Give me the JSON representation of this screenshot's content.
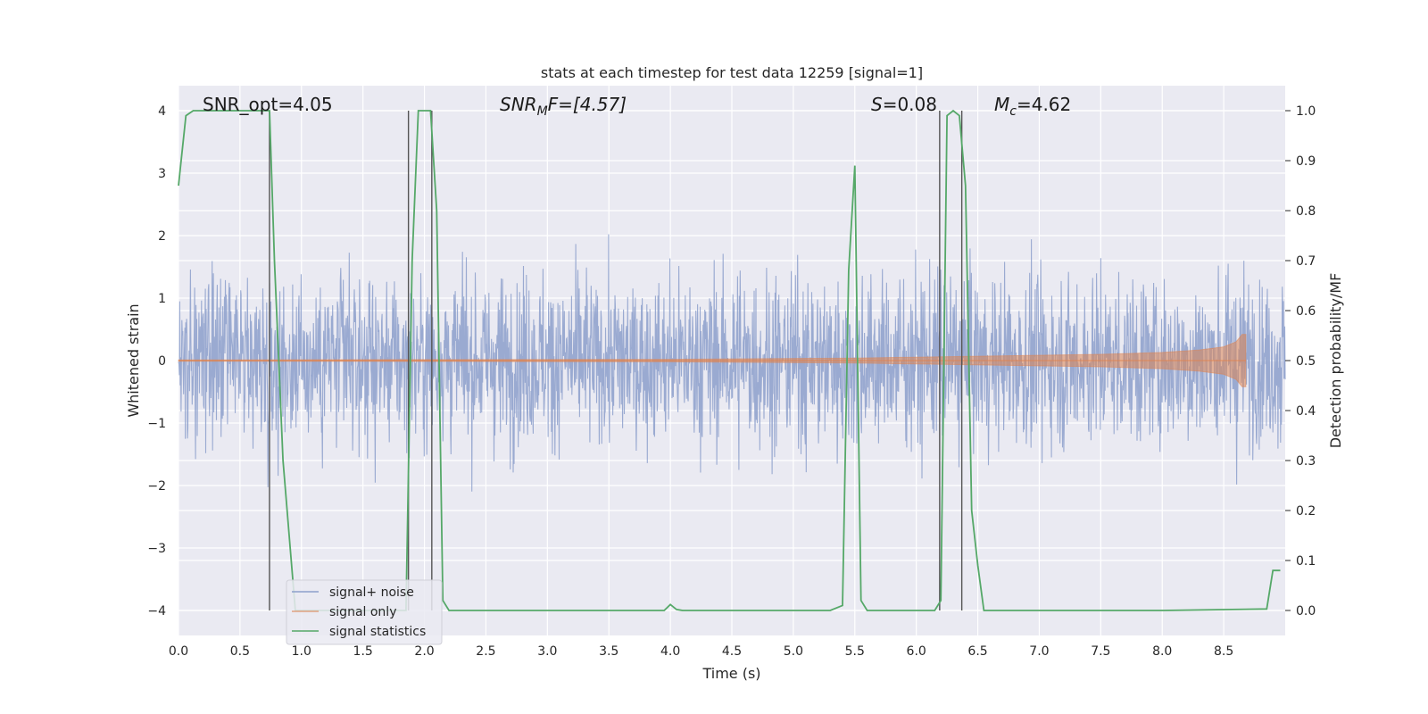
{
  "chart_data": {
    "type": "line",
    "title": "stats at each timestep for test data 12259 [signal=1]",
    "xlabel": "Time (s)",
    "ylabel_left": "Whitened strain",
    "ylabel_right": "Detection probability/MF",
    "xlim": [
      0.0,
      9.0
    ],
    "ylim_left": [
      -4.4,
      4.4
    ],
    "ylim_right": [
      -0.05,
      1.05
    ],
    "xticks": [
      "0.0",
      "0.5",
      "1.0",
      "1.5",
      "2.0",
      "2.5",
      "3.0",
      "3.5",
      "4.0",
      "4.5",
      "5.0",
      "5.5",
      "6.0",
      "6.5",
      "7.0",
      "7.5",
      "8.0",
      "8.5"
    ],
    "yticks_left": [
      "−4",
      "−3",
      "−2",
      "−1",
      "0",
      "1",
      "2",
      "3",
      "4"
    ],
    "yticks_right": [
      "0.0",
      "0.1",
      "0.2",
      "0.3",
      "0.4",
      "0.5",
      "0.6",
      "0.7",
      "0.8",
      "0.9",
      "1.0"
    ],
    "grid": true,
    "background": "#eaeaf2",
    "annotations": {
      "snr_opt": "SNR_opt=4.05",
      "snr_mf_base": "SNR",
      "snr_mf_sub": "M",
      "snr_mf_tail": "F=[4.57]",
      "s_var": "S",
      "s_value": "=0.08",
      "mc_base": "M",
      "mc_sub": "c",
      "mc_value": "=4.62"
    },
    "series": [
      {
        "name": "signal+ noise",
        "color": "#8c9fcb",
        "description_noise": {
          "x_range": [
            0.0,
            9.0
          ],
          "typical_abs_peak": 2.5,
          "max_abs": 4.0
        }
      },
      {
        "name": "signal only",
        "color": "#dd8452",
        "envelope": {
          "x": [
            0.0,
            2.0,
            4.0,
            5.5,
            6.5,
            7.5,
            8.0,
            8.3,
            8.5,
            8.6,
            8.65,
            8.68
          ],
          "amplitude": [
            0.01,
            0.015,
            0.02,
            0.04,
            0.07,
            0.1,
            0.13,
            0.17,
            0.22,
            0.3,
            0.42,
            0.42
          ],
          "end": 8.68
        }
      },
      {
        "name": "signal statistics",
        "color": "#55a868",
        "x": [
          0.0,
          0.06,
          0.12,
          0.3,
          0.5,
          0.7,
          0.74,
          0.78,
          0.85,
          0.95,
          1.85,
          1.9,
          1.95,
          2.05,
          2.1,
          2.15,
          2.2,
          2.3,
          2.5,
          3.0,
          3.5,
          3.95,
          4.0,
          4.05,
          4.1,
          4.3,
          5.0,
          5.3,
          5.4,
          5.45,
          5.5,
          5.55,
          5.6,
          5.7,
          6.0,
          6.15,
          6.2,
          6.25,
          6.3,
          6.35,
          6.4,
          6.45,
          6.5,
          6.55,
          6.6,
          7.0,
          8.0,
          8.85,
          8.9,
          8.96
        ],
        "y": [
          0.85,
          0.99,
          1.0,
          1.0,
          1.0,
          1.0,
          1.0,
          0.7,
          0.3,
          0.0,
          0.0,
          0.7,
          1.0,
          1.0,
          0.8,
          0.02,
          0.0,
          0.0,
          0.0,
          0.0,
          0.0,
          0.0,
          0.012,
          0.002,
          0.0,
          0.0,
          0.0,
          0.0,
          0.01,
          0.68,
          0.89,
          0.02,
          0.0,
          0.0,
          0.0,
          0.0,
          0.02,
          0.99,
          1.0,
          0.99,
          0.85,
          0.2,
          0.09,
          0.0,
          0.0,
          0.0,
          0.0,
          0.003,
          0.08,
          0.08
        ]
      }
    ],
    "vertical_lines_x": [
      0.74,
      1.87,
      2.06,
      6.19,
      6.37
    ],
    "legend": {
      "placement": "lower-left",
      "entries": [
        "signal+ noise",
        "signal only",
        "signal statistics"
      ]
    }
  }
}
